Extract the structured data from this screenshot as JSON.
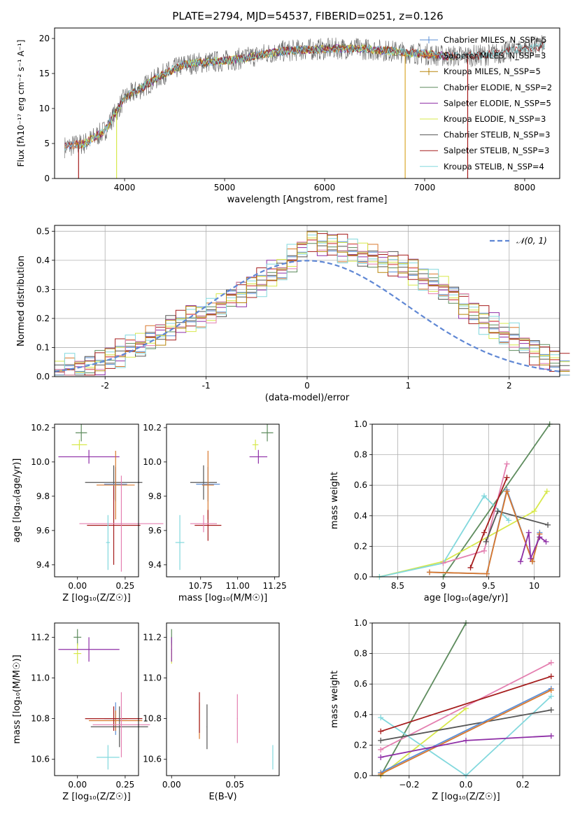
{
  "figure_title": "PLATE=2794, MJD=54537, FIBERID=0251, z=0.126",
  "colors": {
    "Chabrier MILES": "#5b8fd6",
    "Salpeter MILES": "#d9782d",
    "Kroupa MILES": "#b8860b",
    "Chabrier ELODIE": "#5e8c5e",
    "Salpeter ELODIE": "#8e2ea6",
    "Kroupa ELODIE": "#d7e84b",
    "Chabrier STELIB": "#555555",
    "Salpeter STELIB": "#a51c1c",
    "Kroupa STELIB": "#82d8dd",
    "pink": "#e47fb0",
    "normal": "#5f87d4"
  },
  "chart_data": [
    {
      "id": "spectrum",
      "type": "line",
      "xlabel": "wavelength [Angstrom, rest frame]",
      "ylabel": "Flux [fλ10⁻¹⁷ erg cm⁻² s⁻¹ A⁻¹]",
      "xlim": [
        3300,
        8350
      ],
      "ylim": [
        0,
        21.5
      ],
      "xticks": [
        4000,
        5000,
        6000,
        7000,
        8000
      ],
      "yticks": [
        0,
        5,
        10,
        15,
        20
      ],
      "legend_position": "upper-right",
      "legend": [
        "Chabrier MILES, N_SSP=5",
        "Salpeter MILES, N_SSP=3",
        "Kroupa MILES, N_SSP=5",
        "Chabrier ELODIE, N_SSP=2",
        "Salpeter ELODIE, N_SSP=5",
        "Kroupa ELODIE, N_SSP=3",
        "Chabrier STELIB, N_SSP=3",
        "Salpeter STELIB, N_SSP=3",
        "Kroupa STELIB, N_SSP=4"
      ],
      "continuum": {
        "x": [
          3400,
          3600,
          3800,
          4000,
          4200,
          4400,
          4600,
          4800,
          5000,
          5200,
          5400,
          5600,
          5800,
          6000,
          6200,
          6400,
          6600,
          6800,
          7000,
          7200,
          7400,
          7600,
          7800,
          8000,
          8200
        ],
        "y": [
          4.5,
          5.0,
          6.8,
          11.5,
          13.2,
          15.0,
          16.3,
          16.6,
          16.8,
          17.2,
          17.8,
          18.2,
          18.4,
          18.5,
          18.6,
          18.5,
          18.3,
          18.0,
          17.8,
          17.5,
          17.5,
          17.6,
          18.0,
          18.6,
          19.0
        ]
      },
      "model_ranges": [
        [
          3400,
          7300
        ],
        [
          3400,
          7300
        ],
        [
          3500,
          7300
        ],
        [
          3500,
          7300
        ],
        [
          3500,
          7300
        ],
        [
          3500,
          7100
        ],
        [
          3900,
          8200
        ],
        [
          3400,
          8200
        ],
        [
          3400,
          8200
        ]
      ],
      "drops": [
        {
          "x": 3540,
          "y": 0
        },
        {
          "x": 3920,
          "y": 0
        },
        {
          "x": 6805,
          "y": 0
        },
        {
          "x": 7430,
          "y": 0
        }
      ]
    },
    {
      "id": "residuals",
      "type": "histogram",
      "xlabel": "(data-model)/error",
      "ylabel": "Normed distribution",
      "xlim": [
        -2.5,
        2.5
      ],
      "ylim": [
        0,
        0.52
      ],
      "xticks": [
        -2,
        -1,
        0,
        1,
        2
      ],
      "yticks": [
        0.0,
        0.1,
        0.2,
        0.3,
        0.4,
        0.5
      ],
      "grid": true,
      "legend": "𝒩(0, 1)",
      "legend_position": "upper-right",
      "bin_width": 0.1,
      "bin_start": -2.5,
      "base_counts": [
        0.02,
        0.025,
        0.03,
        0.035,
        0.05,
        0.06,
        0.08,
        0.1,
        0.11,
        0.13,
        0.15,
        0.17,
        0.19,
        0.2,
        0.21,
        0.22,
        0.24,
        0.27,
        0.29,
        0.31,
        0.33,
        0.35,
        0.37,
        0.4,
        0.44,
        0.48,
        0.46,
        0.45,
        0.44,
        0.43,
        0.42,
        0.41,
        0.4,
        0.39,
        0.38,
        0.36,
        0.34,
        0.32,
        0.3,
        0.28,
        0.25,
        0.22,
        0.2,
        0.17,
        0.15,
        0.13,
        0.11,
        0.09,
        0.07,
        0.05,
        0.03
      ],
      "series_offsets": [
        0.0,
        0.015,
        -0.01,
        0.02,
        -0.015,
        0.01,
        -0.02,
        0.025,
        -0.005,
        0.012
      ]
    },
    {
      "id": "age-vs-Z",
      "type": "errorbar",
      "xlabel": "Z [log₁₀(Z/Z☉)]",
      "ylabel": "age  [log₁₀(age/yr)]",
      "xlim": [
        -0.12,
        0.32
      ],
      "ylim": [
        9.33,
        10.22
      ],
      "xticks": [
        0.0,
        0.25
      ],
      "xticklabels": [
        "0.00",
        "0.25"
      ],
      "yticks": [
        9.4,
        9.6,
        9.8,
        10.0,
        10.2
      ],
      "points": [
        {
          "series": "Chabrier ELODIE",
          "x": 0.02,
          "y": 10.17,
          "xerr": 0.03,
          "yerr": 0.05
        },
        {
          "series": "Kroupa ELODIE",
          "x": 0.01,
          "y": 10.1,
          "xerr": 0.04,
          "yerr": 0.03
        },
        {
          "series": "Salpeter ELODIE",
          "x": 0.06,
          "y": 10.03,
          "xerr": 0.16,
          "yerr": 0.04
        },
        {
          "series": "Chabrier STELIB",
          "x": 0.19,
          "y": 9.88,
          "xerr": 0.15,
          "yerr": 0.1
        },
        {
          "series": "Chabrier MILES",
          "x": 0.2,
          "y": 9.87,
          "xerr": 0.06,
          "yerr": 0.1
        },
        {
          "series": "Salpeter MILES",
          "x": 0.2,
          "y": 9.865,
          "xerr": 0.1,
          "yerr": 0.2
        },
        {
          "series": "Salpeter STELIB",
          "x": 0.19,
          "y": 9.63,
          "xerr": 0.14,
          "yerr": 0.23
        },
        {
          "series": "pink",
          "x": 0.23,
          "y": 9.64,
          "xerr": 0.22,
          "yerr": 0.28
        },
        {
          "series": "Kroupa STELIB",
          "x": 0.16,
          "y": 9.53,
          "xerr": 0.01,
          "yerr": 0.16
        }
      ]
    },
    {
      "id": "age-vs-mass",
      "type": "errorbar",
      "xlabel": "mass [log₁₀(M/M☉)]",
      "ylabel": "",
      "xlim": [
        10.52,
        11.28
      ],
      "ylim": [
        9.33,
        10.22
      ],
      "xticks": [
        10.75,
        11.0,
        11.25
      ],
      "xticklabels": [
        "10.75",
        "11.00",
        "11.25"
      ],
      "yticks": [
        9.4,
        9.6,
        9.8,
        10.0,
        10.2
      ],
      "points": [
        {
          "series": "Chabrier ELODIE",
          "x": 11.2,
          "y": 10.17,
          "xerr": 0.04,
          "yerr": 0.05
        },
        {
          "series": "Kroupa ELODIE",
          "x": 11.12,
          "y": 10.1,
          "xerr": 0.02,
          "yerr": 0.03
        },
        {
          "series": "Salpeter ELODIE",
          "x": 11.14,
          "y": 10.03,
          "xerr": 0.06,
          "yerr": 0.04
        },
        {
          "series": "Chabrier STELIB",
          "x": 10.77,
          "y": 9.88,
          "xerr": 0.09,
          "yerr": 0.1
        },
        {
          "series": "Chabrier MILES",
          "x": 10.8,
          "y": 9.87,
          "xerr": 0.08,
          "yerr": 0.1
        },
        {
          "series": "Salpeter MILES",
          "x": 10.8,
          "y": 9.865,
          "xerr": 0.04,
          "yerr": 0.2
        },
        {
          "series": "Salpeter STELIB",
          "x": 10.8,
          "y": 9.63,
          "xerr": 0.09,
          "yerr": 0.09
        },
        {
          "series": "pink",
          "x": 10.77,
          "y": 9.64,
          "xerr": 0.09,
          "yerr": 0.05
        },
        {
          "series": "Kroupa STELIB",
          "x": 10.61,
          "y": 9.53,
          "xerr": 0.03,
          "yerr": 0.16
        }
      ]
    },
    {
      "id": "weight-vs-age",
      "type": "line",
      "xlabel": "age  [log₁₀(age/yr)]",
      "ylabel": "mass weight",
      "xlim": [
        8.22,
        10.28
      ],
      "ylim": [
        0,
        1.0
      ],
      "xticks": [
        8.5,
        9.0,
        9.5,
        10.0
      ],
      "yticks": [
        0.0,
        0.2,
        0.4,
        0.6,
        0.8,
        1.0
      ],
      "grid": true,
      "series": [
        {
          "name": "Chabrier ELODIE",
          "x": [
            9.0,
            10.17
          ],
          "y": [
            0.0,
            1.0
          ]
        },
        {
          "name": "Kroupa ELODIE",
          "x": [
            8.3,
            9.0,
            10.0,
            10.14
          ],
          "y": [
            0.0,
            0.1,
            0.43,
            0.56
          ]
        },
        {
          "name": "Kroupa STELIB",
          "x": [
            8.3,
            9.0,
            9.45,
            9.72
          ],
          "y": [
            0.0,
            0.09,
            0.53,
            0.37
          ]
        },
        {
          "name": "pink",
          "x": [
            9.0,
            9.45,
            9.7
          ],
          "y": [
            0.09,
            0.17,
            0.74
          ]
        },
        {
          "name": "Salpeter STELIB",
          "x": [
            9.3,
            9.45,
            9.7
          ],
          "y": [
            0.06,
            0.29,
            0.65
          ]
        },
        {
          "name": "Chabrier STELIB",
          "x": [
            9.47,
            9.6,
            10.15
          ],
          "y": [
            0.23,
            0.43,
            0.34
          ]
        },
        {
          "name": "Chabrier MILES",
          "x": [
            8.85,
            9.48,
            9.7,
            9.98,
            10.06
          ],
          "y": [
            0.03,
            0.02,
            0.57,
            0.1,
            0.29
          ]
        },
        {
          "name": "Salpeter MILES",
          "x": [
            8.85,
            9.48,
            9.7,
            9.98,
            10.06
          ],
          "y": [
            0.03,
            0.02,
            0.56,
            0.1,
            0.28
          ]
        },
        {
          "name": "Salpeter ELODIE",
          "x": [
            9.85,
            9.94,
            9.96,
            10.06,
            10.13
          ],
          "y": [
            0.1,
            0.29,
            0.12,
            0.26,
            0.23
          ]
        }
      ]
    },
    {
      "id": "mass-vs-Z",
      "type": "errorbar",
      "xlabel": "Z [log₁₀(Z/Z☉)]",
      "ylabel": "mass [log₁₀(M/M☉)]",
      "xlim": [
        -0.12,
        0.32
      ],
      "ylim": [
        10.52,
        11.27
      ],
      "xticks": [
        0.0,
        0.25
      ],
      "xticklabels": [
        "0.00",
        "0.25"
      ],
      "yticks": [
        10.6,
        10.8,
        11.0,
        11.2
      ],
      "points": [
        {
          "series": "Chabrier ELODIE",
          "x": 0.0,
          "y": 11.2,
          "xerr": 0.02,
          "yerr": 0.04
        },
        {
          "series": "Kroupa ELODIE",
          "x": 0.0,
          "y": 11.12,
          "xerr": 0.02,
          "yerr": 0.05
        },
        {
          "series": "Salpeter ELODIE",
          "x": 0.06,
          "y": 11.14,
          "xerr": 0.16,
          "yerr": 0.06
        },
        {
          "series": "Chabrier MILES",
          "x": 0.2,
          "y": 10.8,
          "xerr": 0.06,
          "yerr": 0.08
        },
        {
          "series": "Salpeter MILES",
          "x": 0.2,
          "y": 10.79,
          "xerr": 0.14,
          "yerr": 0.05
        },
        {
          "series": "Salpeter STELIB",
          "x": 0.19,
          "y": 10.8,
          "xerr": 0.15,
          "yerr": 0.06
        },
        {
          "series": "Chabrier STELIB",
          "x": 0.22,
          "y": 10.76,
          "xerr": 0.15,
          "yerr": 0.1
        },
        {
          "series": "pink",
          "x": 0.23,
          "y": 10.77,
          "xerr": 0.15,
          "yerr": 0.16
        },
        {
          "series": "Kroupa STELIB",
          "x": 0.16,
          "y": 10.61,
          "xerr": 0.06,
          "yerr": 0.06
        }
      ]
    },
    {
      "id": "mass-vs-EBV",
      "type": "errorbar",
      "xlabel": "E(B-V)",
      "ylabel": "",
      "xlim": [
        -0.004,
        0.085
      ],
      "ylim": [
        10.52,
        11.27
      ],
      "xticks": [
        0.0,
        0.05
      ],
      "xticklabels": [
        "0.00",
        "0.05"
      ],
      "yticks": [
        10.6,
        10.8,
        11.0,
        11.2
      ],
      "points": [
        {
          "series": "Chabrier ELODIE",
          "x": 0.0,
          "y": 11.2,
          "xerr": 0.0003,
          "yerr": 0.04
        },
        {
          "series": "Kroupa ELODIE",
          "x": 0.0,
          "y": 11.12,
          "xerr": 0.0003,
          "yerr": 0.05
        },
        {
          "series": "Salpeter ELODIE",
          "x": 0.0,
          "y": 11.14,
          "xerr": 0.0003,
          "yerr": 0.06
        },
        {
          "series": "Salpeter MILES",
          "x": 0.022,
          "y": 10.79,
          "xerr": 0.0003,
          "yerr": 0.09
        },
        {
          "series": "Salpeter STELIB",
          "x": 0.022,
          "y": 10.83,
          "xerr": 0.0003,
          "yerr": 0.1
        },
        {
          "series": "Chabrier STELIB",
          "x": 0.028,
          "y": 10.76,
          "xerr": 0.0003,
          "yerr": 0.11
        },
        {
          "series": "pink",
          "x": 0.052,
          "y": 10.8,
          "xerr": 0.0003,
          "yerr": 0.12
        },
        {
          "series": "Kroupa STELIB",
          "x": 0.08,
          "y": 10.61,
          "xerr": 0.0003,
          "yerr": 0.06
        }
      ]
    },
    {
      "id": "weight-vs-Z",
      "type": "line",
      "xlabel": "Z [log₁₀(Z/Z☉)]",
      "ylabel": "mass weight",
      "xlim": [
        -0.33,
        0.33
      ],
      "ylim": [
        0,
        1.0
      ],
      "xticks": [
        -0.2,
        0.0,
        0.2
      ],
      "xticklabels": [
        "−0.2",
        "0.0",
        "0.2"
      ],
      "yticks": [
        0.0,
        0.2,
        0.4,
        0.6,
        0.8,
        1.0
      ],
      "grid": true,
      "series": [
        {
          "name": "Chabrier ELODIE",
          "x": [
            -0.3,
            0.0
          ],
          "y": [
            0.0,
            1.0
          ]
        },
        {
          "name": "Kroupa ELODIE",
          "x": [
            -0.3,
            0.0
          ],
          "y": [
            0.0,
            0.44
          ]
        },
        {
          "name": "Kroupa STELIB",
          "x": [
            -0.3,
            0.0,
            0.3
          ],
          "y": [
            0.38,
            0.0,
            0.52
          ]
        },
        {
          "name": "pink",
          "x": [
            -0.3,
            0.3
          ],
          "y": [
            0.17,
            0.74
          ]
        },
        {
          "name": "Salpeter STELIB",
          "x": [
            -0.3,
            0.3
          ],
          "y": [
            0.29,
            0.65
          ]
        },
        {
          "name": "Chabrier STELIB",
          "x": [
            -0.3,
            0.3
          ],
          "y": [
            0.23,
            0.43
          ]
        },
        {
          "name": "Chabrier MILES",
          "x": [
            -0.3,
            0.3
          ],
          "y": [
            0.02,
            0.57
          ]
        },
        {
          "name": "Salpeter MILES",
          "x": [
            -0.3,
            0.3
          ],
          "y": [
            0.01,
            0.56
          ]
        },
        {
          "name": "Salpeter ELODIE",
          "x": [
            -0.3,
            0.0,
            0.3
          ],
          "y": [
            0.12,
            0.23,
            0.26
          ]
        }
      ]
    }
  ]
}
